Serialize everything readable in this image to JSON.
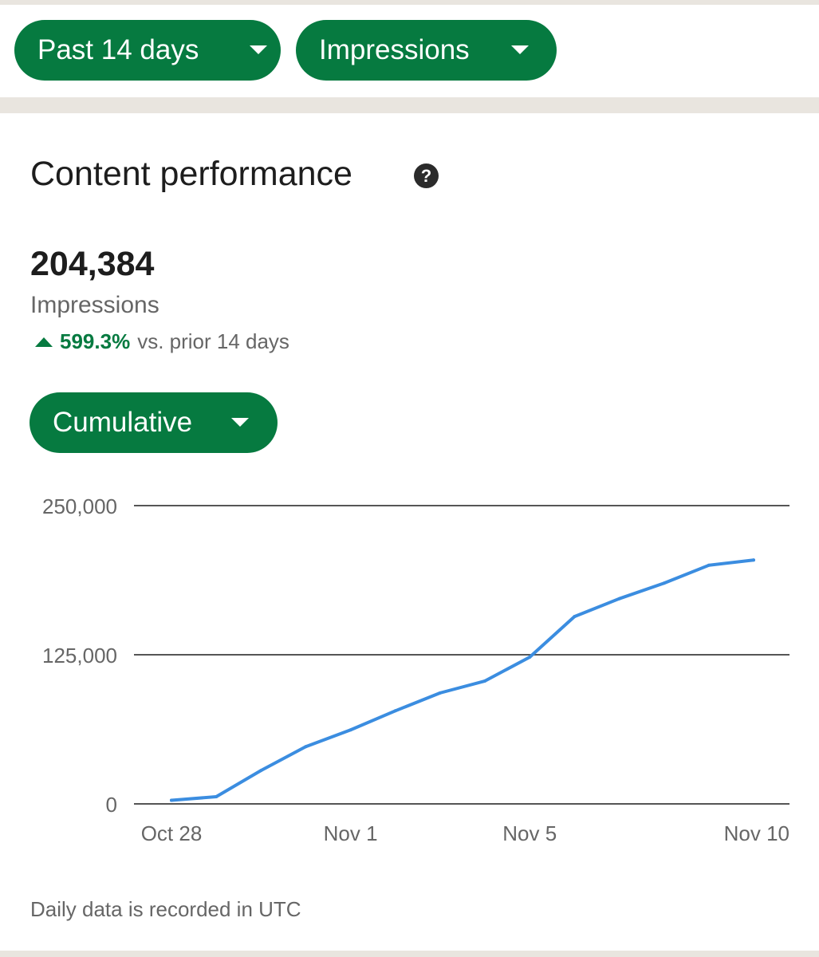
{
  "filters": {
    "period_label": "Past 14 days",
    "metric_label": "Impressions"
  },
  "card": {
    "title": "Content performance",
    "help_icon_glyph": "?",
    "total_value": "204,384",
    "metric_name": "Impressions",
    "change_percent": "599.3%",
    "change_text": "vs. prior 14 days",
    "view_mode_label": "Cumulative",
    "footnote": "Daily data is recorded in UTC"
  },
  "colors": {
    "accent_green": "#067a40",
    "line_blue": "#3b8de0",
    "text_dark": "#1d1d1d",
    "text_muted": "#666666"
  },
  "icons": {
    "dropdown": "caret-down-icon",
    "help": "question-circle-icon",
    "trend": "triangle-up-icon"
  },
  "chart_data": {
    "type": "line",
    "title": "",
    "xlabel": "",
    "ylabel": "",
    "x": [
      "Oct 28",
      "Oct 29",
      "Oct 30",
      "Oct 31",
      "Nov 1",
      "Nov 2",
      "Nov 3",
      "Nov 4",
      "Nov 5",
      "Nov 6",
      "Nov 7",
      "Nov 8",
      "Nov 9",
      "Nov 10"
    ],
    "series": [
      {
        "values": [
          3000,
          6000,
          28000,
          48000,
          62000,
          78000,
          93000,
          103000,
          123000,
          157000,
          172000,
          185000,
          200000,
          204384
        ]
      }
    ],
    "x_tick_labels": [
      "Oct 28",
      "Nov 1",
      "Nov 5",
      "Nov 10"
    ],
    "y_tick_labels": [
      "250,000",
      "125,000",
      "0"
    ],
    "y_ticks": [
      250000,
      125000,
      0
    ],
    "ylim": [
      0,
      250000
    ],
    "grid": true,
    "legend": "none"
  }
}
